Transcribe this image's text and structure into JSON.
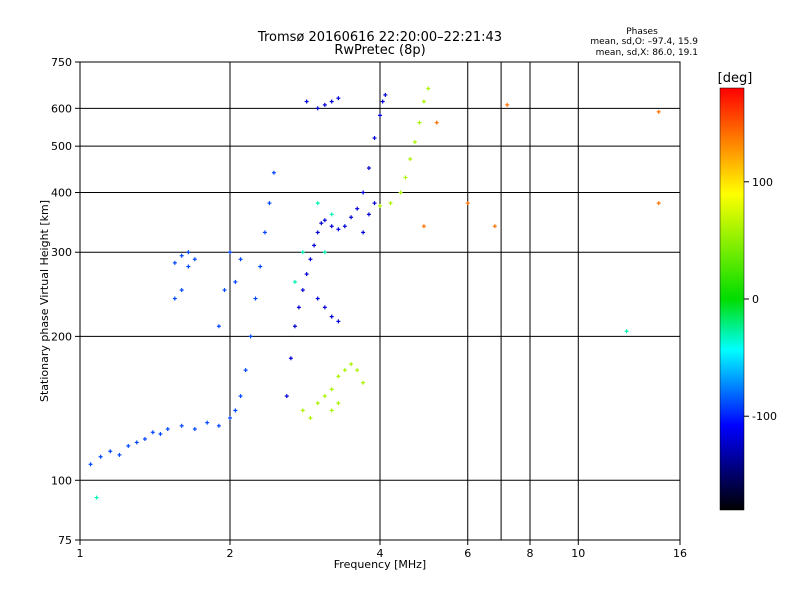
{
  "header": {
    "title_line1": "Tromsø 20160616 22:20:00–22:21:43",
    "title_line2": "RwPretec (8p)"
  },
  "phases_box": {
    "title": "Phases",
    "line_o": "mean, sd,O: –97.4, 15.9",
    "line_x": "mean, sd,X:  86.0, 19.1"
  },
  "colorbar": {
    "label": "[deg]",
    "range": [
      -180,
      180
    ],
    "ticks": [
      100,
      0,
      -100
    ],
    "colors": [
      "#ff0000",
      "#ffff00",
      "#00dd00",
      "#00ffff",
      "#0000ff",
      "#000000"
    ]
  },
  "chart_data": {
    "type": "scatter",
    "title": "Tromsø 20160616 22:20:00–22:21:43",
    "subtitle": "RwPretec (8p)",
    "xlabel": "Frequency [MHz]",
    "ylabel": "Stationary phase Virtual Height [km]",
    "x_scale": "log",
    "y_scale": "log",
    "xlim": [
      1,
      16
    ],
    "ylim": [
      75,
      750
    ],
    "x_ticks": [
      1,
      2,
      4,
      6,
      8,
      10,
      16
    ],
    "x_tick_labels": [
      "1",
      "2",
      "4",
      "6",
      "8",
      "10",
      "16"
    ],
    "x_grid": [
      2,
      4,
      6,
      7,
      8,
      10
    ],
    "y_ticks": [
      75,
      100,
      200,
      300,
      400,
      500,
      600,
      750
    ],
    "y_tick_labels": [
      "75",
      "100",
      "200",
      "300",
      "400",
      "500",
      "600",
      "750"
    ],
    "y_grid": [
      100,
      200,
      300,
      400,
      500,
      600
    ],
    "grid": true,
    "color_by": "phase [deg]",
    "series": [
      {
        "color_phase": -90,
        "points": [
          [
            1.05,
            108
          ],
          [
            1.1,
            112
          ],
          [
            1.15,
            115
          ],
          [
            1.2,
            113
          ],
          [
            1.25,
            118
          ],
          [
            1.3,
            120
          ],
          [
            1.35,
            122
          ],
          [
            1.4,
            126
          ],
          [
            1.45,
            125
          ],
          [
            1.5,
            128
          ],
          [
            1.6,
            130
          ],
          [
            1.7,
            128
          ],
          [
            1.8,
            132
          ],
          [
            1.9,
            130
          ],
          [
            2.0,
            135
          ],
          [
            2.05,
            140
          ],
          [
            2.1,
            150
          ],
          [
            2.15,
            170
          ],
          [
            2.2,
            200
          ],
          [
            2.25,
            240
          ],
          [
            2.3,
            280
          ],
          [
            2.35,
            330
          ],
          [
            2.4,
            380
          ],
          [
            2.45,
            440
          ],
          [
            2.05,
            260
          ],
          [
            2.1,
            290
          ],
          [
            2.0,
            300
          ],
          [
            1.95,
            250
          ],
          [
            1.9,
            210
          ],
          [
            1.55,
            240
          ],
          [
            1.6,
            250
          ],
          [
            1.55,
            285
          ],
          [
            1.6,
            295
          ],
          [
            1.65,
            280
          ],
          [
            1.7,
            290
          ],
          [
            1.65,
            300
          ]
        ]
      },
      {
        "color_phase": -120,
        "points": [
          [
            2.6,
            150
          ],
          [
            2.65,
            180
          ],
          [
            2.7,
            210
          ],
          [
            2.75,
            230
          ],
          [
            2.8,
            250
          ],
          [
            2.85,
            270
          ],
          [
            2.9,
            290
          ],
          [
            2.95,
            310
          ],
          [
            3.0,
            330
          ],
          [
            3.05,
            345
          ],
          [
            3.1,
            350
          ],
          [
            3.2,
            340
          ],
          [
            3.3,
            335
          ],
          [
            3.4,
            340
          ],
          [
            3.5,
            355
          ],
          [
            3.6,
            370
          ],
          [
            3.7,
            400
          ],
          [
            3.8,
            450
          ],
          [
            3.9,
            520
          ],
          [
            4.0,
            580
          ],
          [
            4.05,
            620
          ],
          [
            4.1,
            640
          ],
          [
            3.7,
            330
          ],
          [
            3.8,
            360
          ],
          [
            3.9,
            380
          ],
          [
            3.0,
            600
          ],
          [
            3.1,
            610
          ],
          [
            3.2,
            620
          ],
          [
            3.3,
            630
          ],
          [
            2.85,
            620
          ],
          [
            3.0,
            240
          ],
          [
            3.1,
            230
          ],
          [
            3.2,
            220
          ],
          [
            3.3,
            215
          ]
        ]
      },
      {
        "color_phase": 60,
        "points": [
          [
            2.8,
            140
          ],
          [
            2.9,
            135
          ],
          [
            3.0,
            145
          ],
          [
            3.1,
            150
          ],
          [
            3.2,
            155
          ],
          [
            3.3,
            165
          ],
          [
            3.4,
            170
          ],
          [
            3.5,
            175
          ],
          [
            3.6,
            170
          ],
          [
            3.7,
            160
          ],
          [
            3.2,
            140
          ],
          [
            3.3,
            145
          ],
          [
            4.0,
            375
          ],
          [
            4.2,
            380
          ],
          [
            4.4,
            400
          ],
          [
            4.5,
            430
          ],
          [
            4.6,
            470
          ],
          [
            4.7,
            510
          ],
          [
            4.8,
            560
          ],
          [
            4.9,
            620
          ],
          [
            5.0,
            660
          ]
        ]
      },
      {
        "color_phase": -30,
        "points": [
          [
            1.08,
            92
          ],
          [
            2.7,
            260
          ],
          [
            2.8,
            300
          ],
          [
            3.0,
            380
          ],
          [
            3.1,
            300
          ],
          [
            3.2,
            360
          ],
          [
            12.5,
            205
          ]
        ]
      },
      {
        "color_phase": 140,
        "points": [
          [
            4.9,
            340
          ],
          [
            5.2,
            560
          ],
          [
            6.0,
            380
          ],
          [
            6.8,
            340
          ],
          [
            7.2,
            610
          ],
          [
            14.5,
            380
          ],
          [
            14.5,
            590
          ]
        ]
      }
    ]
  }
}
